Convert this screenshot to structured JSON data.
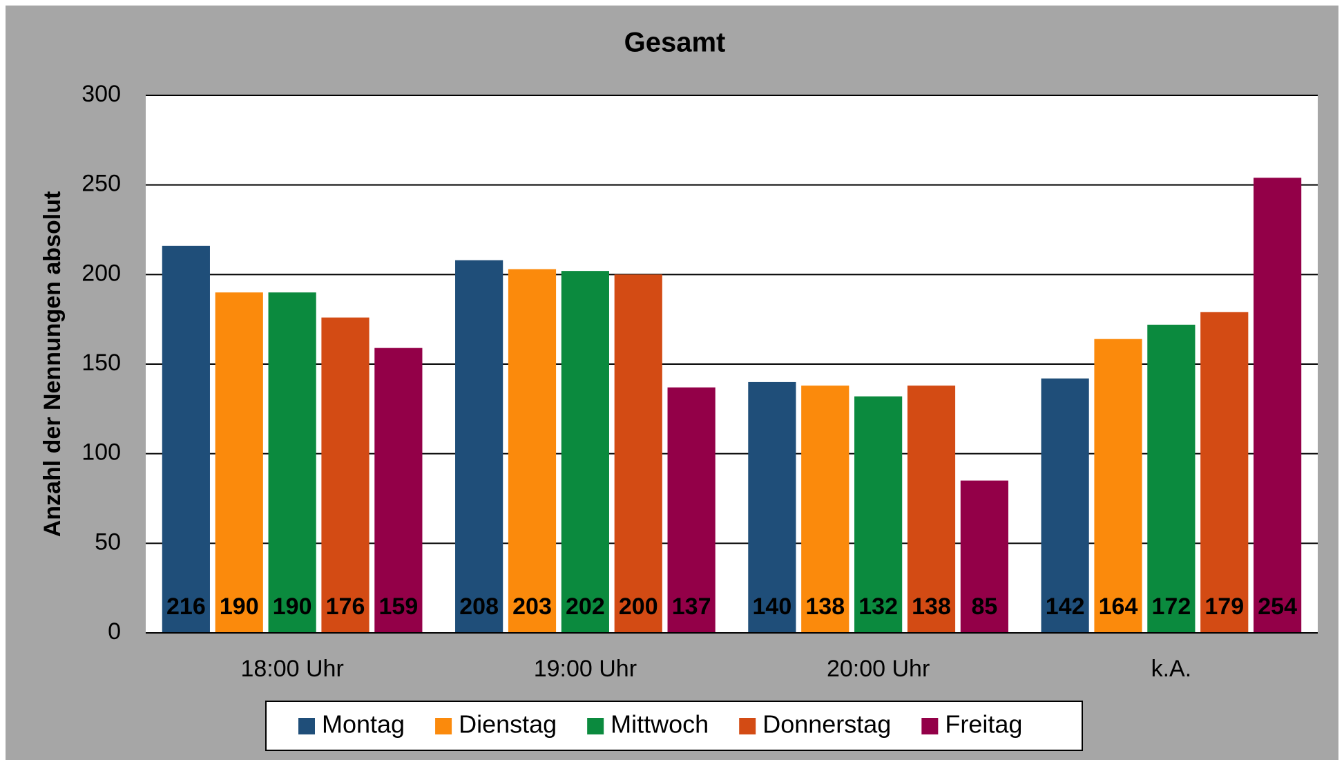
{
  "chart_data": {
    "type": "bar",
    "title": "Gesamt",
    "ylabel": "Anzahl der Nennungen absolut",
    "categories": [
      "18:00 Uhr",
      "19:00 Uhr",
      "20:00 Uhr",
      "k.A."
    ],
    "series": [
      {
        "name": "Montag",
        "color": "#1f4e79",
        "values": [
          216,
          208,
          140,
          142
        ]
      },
      {
        "name": "Dienstag",
        "color": "#fb8a0c",
        "values": [
          190,
          203,
          138,
          164
        ]
      },
      {
        "name": "Mittwoch",
        "color": "#0b8a3e",
        "values": [
          190,
          202,
          132,
          172
        ]
      },
      {
        "name": "Donnerstag",
        "color": "#d34b14",
        "values": [
          176,
          200,
          138,
          179
        ]
      },
      {
        "name": "Freitag",
        "color": "#930048",
        "values": [
          159,
          137,
          85,
          254
        ]
      }
    ],
    "ylim": [
      0,
      300
    ],
    "yticks": [
      0,
      50,
      100,
      150,
      200,
      250,
      300
    ],
    "grid": true,
    "legend": "bottom"
  }
}
